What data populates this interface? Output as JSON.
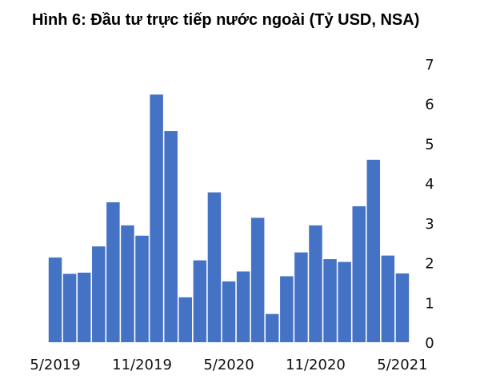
{
  "chart_data": {
    "type": "bar",
    "title": "Hình 6: Đầu tư trực tiếp nước ngoài (Tỷ USD, NSA)",
    "xlabel": "",
    "ylabel": "",
    "ylim": [
      0,
      7
    ],
    "y_ticks": [
      0,
      1,
      2,
      3,
      4,
      5,
      6,
      7
    ],
    "y_axis_side": "right",
    "grid": false,
    "bar_color": "#4472C4",
    "categories": [
      "5/2019",
      "6/2019",
      "7/2019",
      "8/2019",
      "9/2019",
      "10/2019",
      "11/2019",
      "12/2019",
      "1/2020",
      "2/2020",
      "3/2020",
      "4/2020",
      "5/2020",
      "6/2020",
      "7/2020",
      "8/2020",
      "9/2020",
      "10/2020",
      "11/2020",
      "12/2020",
      "1/2021",
      "2/2021",
      "3/2021",
      "4/2021",
      "5/2021"
    ],
    "x_tick_labels": [
      "5/2019",
      "11/2019",
      "5/2020",
      "11/2020",
      "5/2021"
    ],
    "values": [
      2.13,
      1.72,
      1.75,
      2.41,
      3.52,
      2.94,
      2.68,
      6.23,
      5.31,
      1.13,
      2.06,
      3.77,
      1.53,
      1.78,
      3.13,
      0.71,
      1.66,
      2.26,
      2.94,
      2.09,
      2.02,
      3.42,
      4.59,
      2.18,
      1.73
    ]
  }
}
